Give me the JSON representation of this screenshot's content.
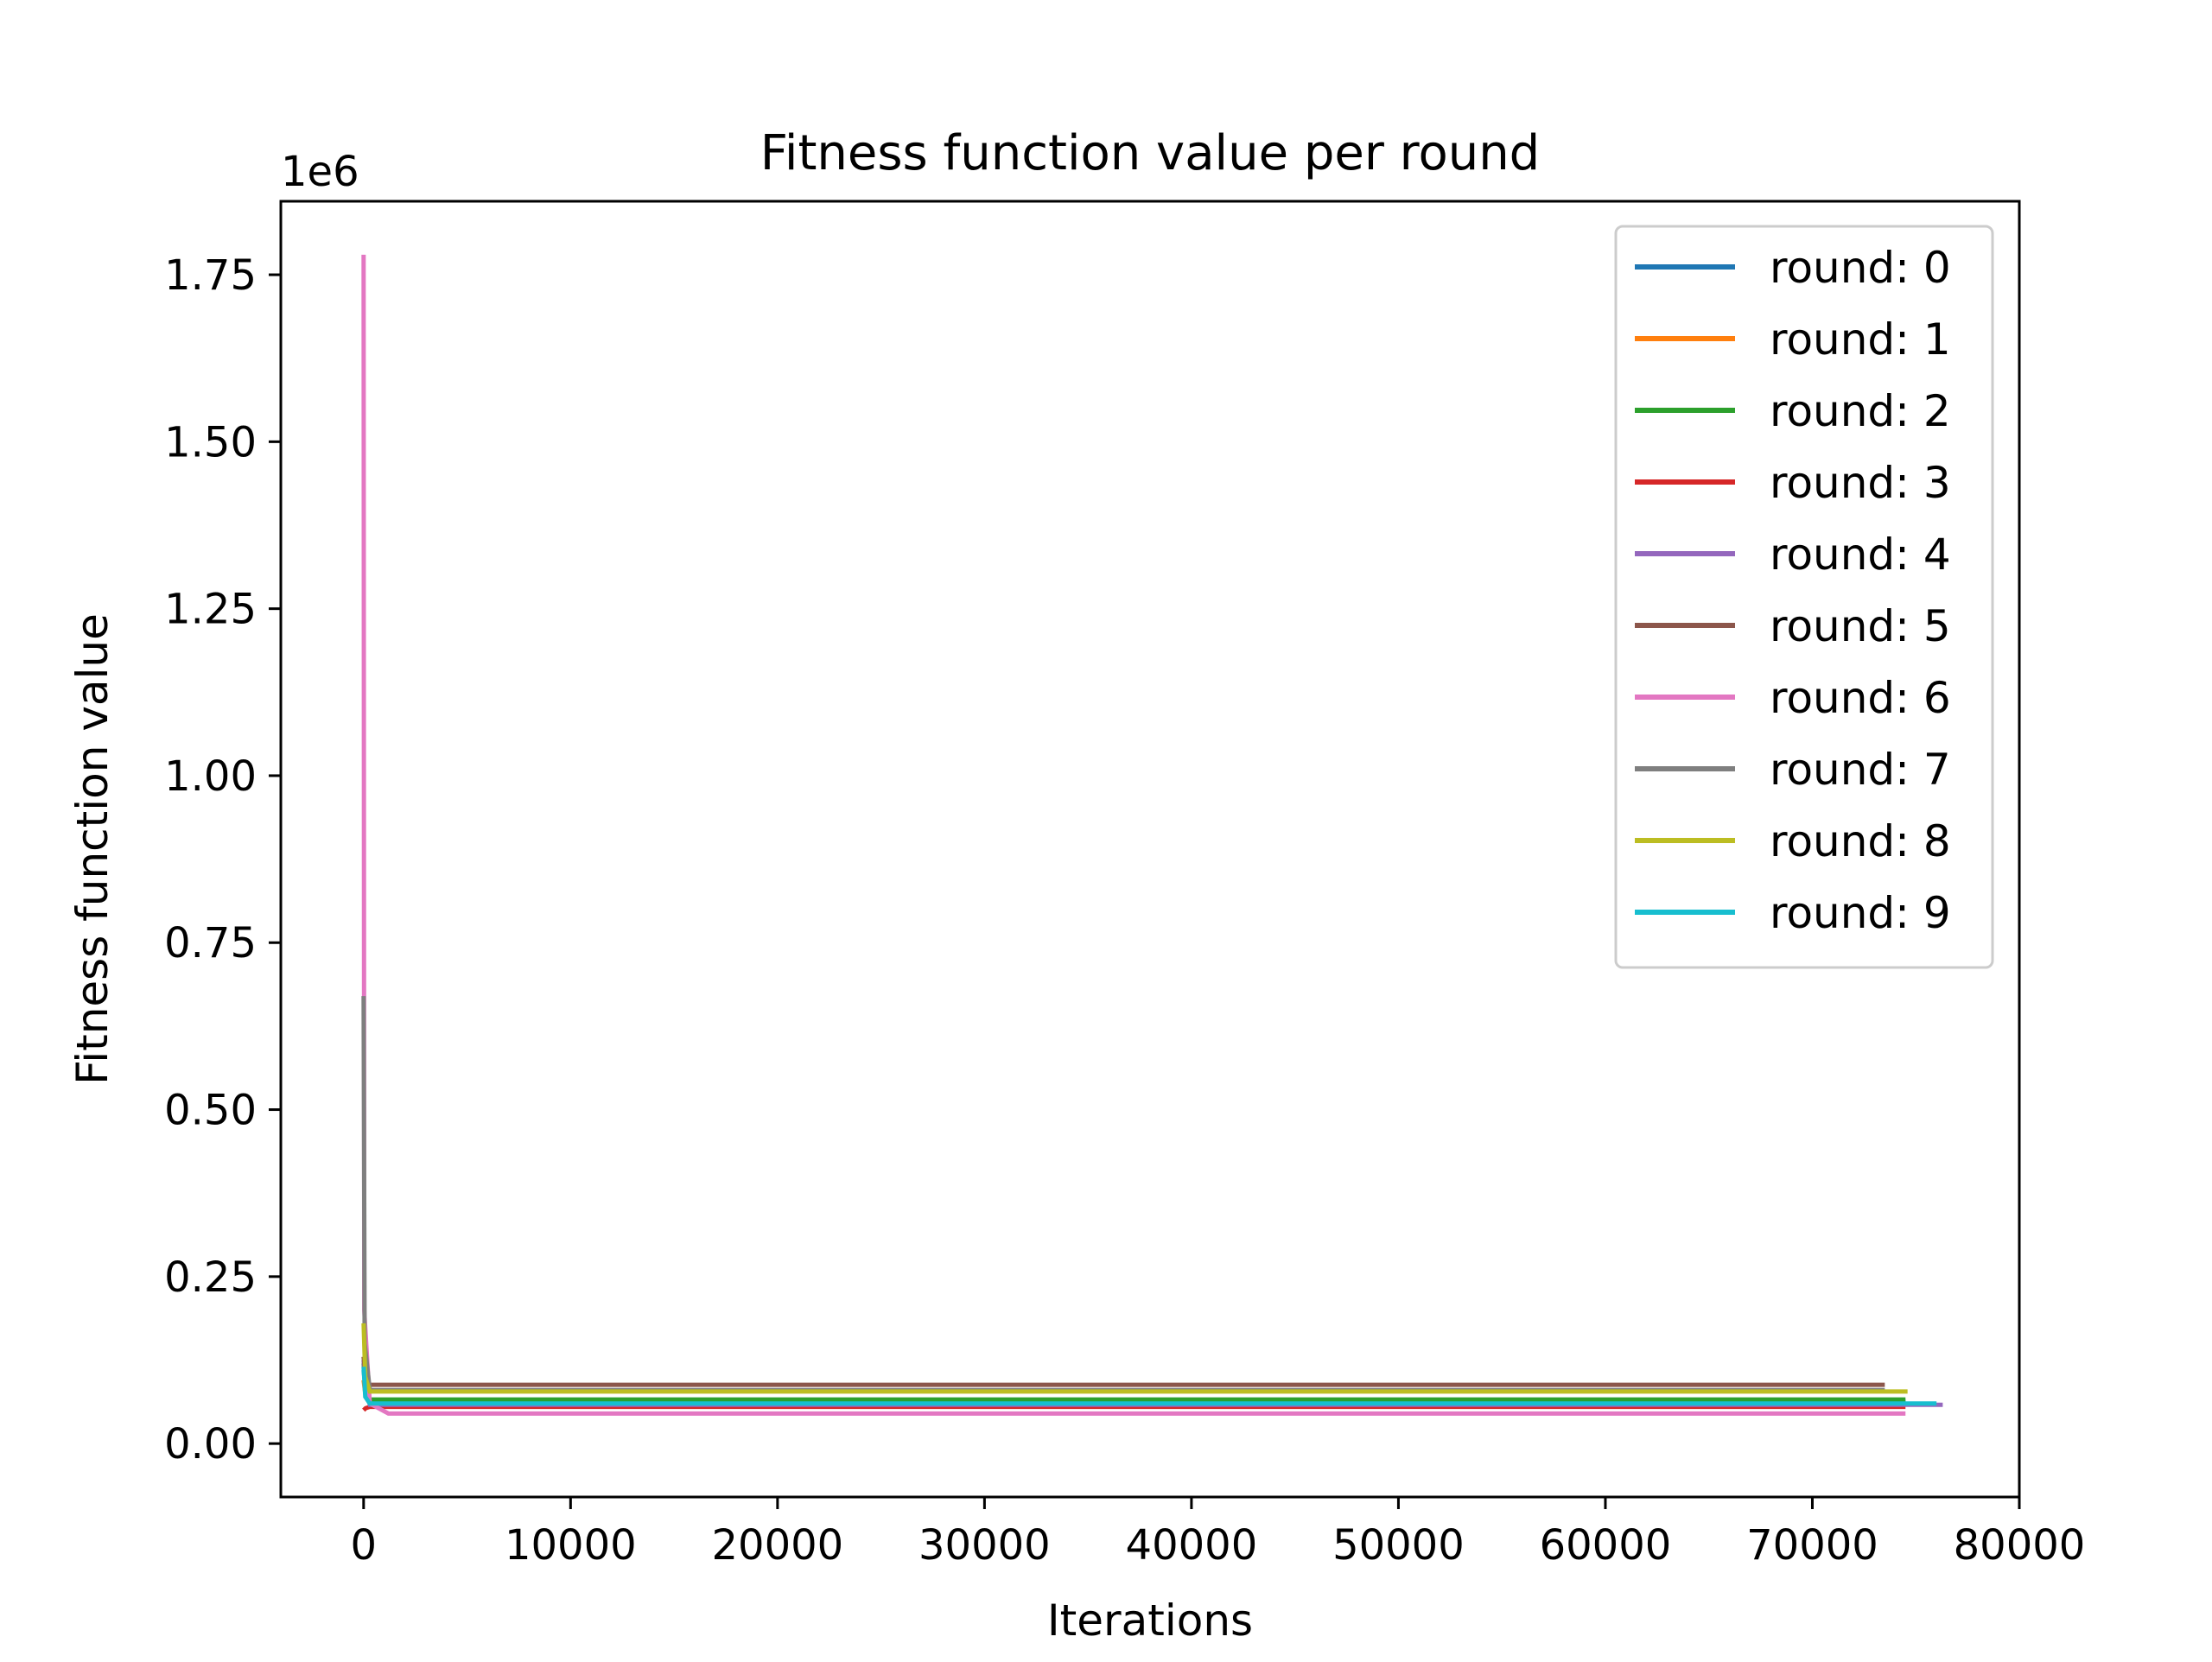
{
  "chart_data": {
    "type": "line",
    "title": "Fitness function value per round",
    "xlabel": "Iterations",
    "ylabel": "Fitness function value",
    "y_offset_label": "1e6",
    "xlim": [
      -4000,
      80000
    ],
    "ylim": [
      -80000,
      1860000
    ],
    "x_ticks": [
      0,
      10000,
      20000,
      30000,
      40000,
      50000,
      60000,
      70000,
      80000
    ],
    "x_tick_labels": [
      "0",
      "10000",
      "20000",
      "30000",
      "40000",
      "50000",
      "60000",
      "70000",
      "80000"
    ],
    "y_ticks": [
      0,
      250000,
      500000,
      750000,
      1000000,
      1250000,
      1500000,
      1750000
    ],
    "y_tick_labels": [
      "0.00",
      "0.25",
      "0.50",
      "0.75",
      "1.00",
      "1.25",
      "1.50",
      "1.75"
    ],
    "grid": false,
    "legend_position": "top-right",
    "series": [
      {
        "name": "round: 0",
        "color": "#1f77b4",
        "x": [
          0,
          100,
          300,
          74500
        ],
        "y": [
          110000,
          80000,
          63000,
          63000
        ]
      },
      {
        "name": "round: 1",
        "color": "#ff7f0e",
        "x": [
          0,
          100,
          300,
          74500
        ],
        "y": [
          95000,
          70000,
          60000,
          60000
        ]
      },
      {
        "name": "round: 2",
        "color": "#2ca02c",
        "x": [
          0,
          100,
          300,
          74500
        ],
        "y": [
          120000,
          80000,
          66000,
          66000
        ]
      },
      {
        "name": "round: 3",
        "color": "#d62728",
        "x": [
          0,
          100,
          300,
          74500
        ],
        "y": [
          50000,
          53000,
          55000,
          55000
        ]
      },
      {
        "name": "round: 4",
        "color": "#9467bd",
        "x": [
          0,
          100,
          300,
          76300
        ],
        "y": [
          125000,
          80000,
          58000,
          58000
        ]
      },
      {
        "name": "round: 5",
        "color": "#8c564b",
        "x": [
          0,
          100,
          300,
          73500
        ],
        "y": [
          130000,
          100000,
          88000,
          88000
        ]
      },
      {
        "name": "round: 6",
        "color": "#e377c2",
        "x": [
          0,
          30,
          300,
          1200,
          74500
        ],
        "y": [
          1780000,
          200000,
          60000,
          45000,
          45000
        ]
      },
      {
        "name": "round: 7",
        "color": "#7f7f7f",
        "x": [
          0,
          50,
          300,
          73500
        ],
        "y": [
          670000,
          150000,
          80000,
          80000
        ]
      },
      {
        "name": "round: 8",
        "color": "#bcbd22",
        "x": [
          0,
          80,
          300,
          74600
        ],
        "y": [
          180000,
          100000,
          78000,
          78000
        ]
      },
      {
        "name": "round: 9",
        "color": "#17becf",
        "x": [
          0,
          80,
          300,
          76000
        ],
        "y": [
          115000,
          70000,
          60000,
          60000
        ]
      }
    ]
  }
}
